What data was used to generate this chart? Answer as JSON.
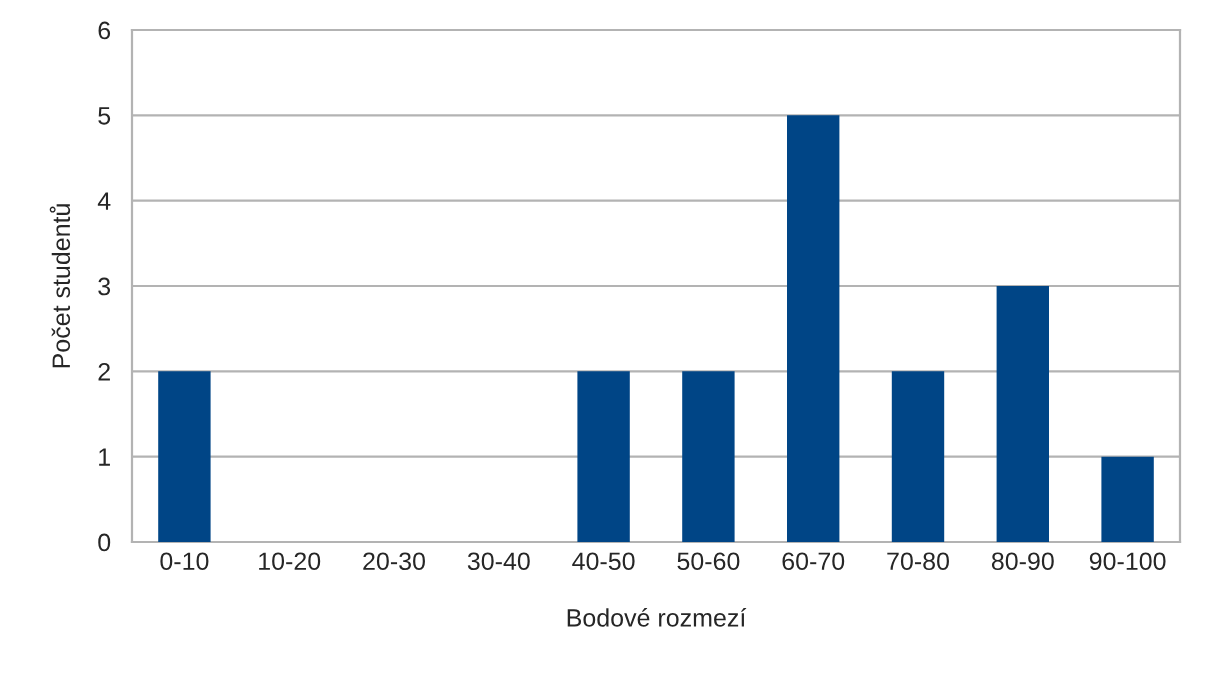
{
  "chart_data": {
    "type": "bar",
    "xlabel": "Bodové rozmezí",
    "ylabel": "Počet studentů",
    "categories": [
      "0-10",
      "10-20",
      "20-30",
      "30-40",
      "40-50",
      "50-60",
      "60-70",
      "70-80",
      "80-90",
      "90-100"
    ],
    "values": [
      2,
      0,
      0,
      0,
      2,
      2,
      5,
      2,
      3,
      1
    ],
    "color": "#004586",
    "ylim": [
      0,
      6
    ],
    "yticks": [
      0,
      1,
      2,
      3,
      4,
      5,
      6
    ],
    "grid": "y",
    "legend": false
  }
}
